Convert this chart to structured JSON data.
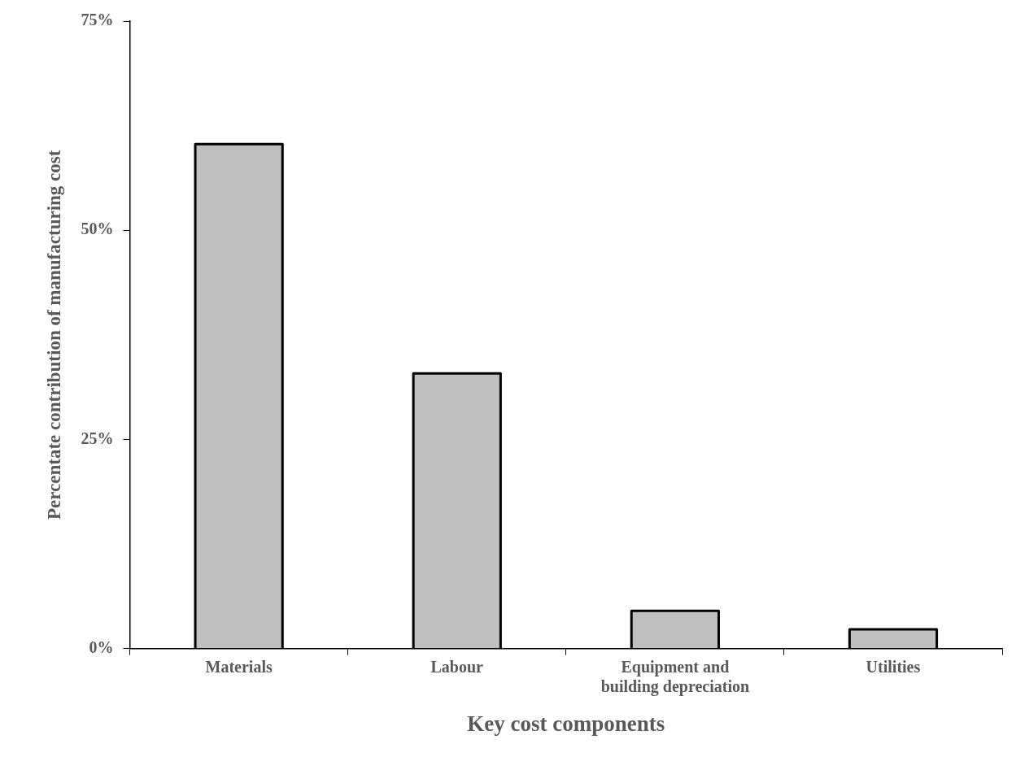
{
  "chart_data": {
    "type": "bar",
    "xlabel": "Key cost components",
    "ylabel": "Percentate contribution of manufacturing cost",
    "categories": [
      "Materials",
      "Labour",
      "Equipment and building depreciation",
      "Utilities"
    ],
    "values": [
      60.3,
      32.9,
      4.5,
      2.3
    ],
    "color": "#bfbfbf",
    "ylim": [
      0,
      75
    ],
    "yticks": [
      {
        "value": 0,
        "label": "0%"
      },
      {
        "value": 25,
        "label": "25%"
      },
      {
        "value": 50,
        "label": "50%"
      },
      {
        "value": 75,
        "label": "75%"
      }
    ],
    "grid": false,
    "legend": false
  }
}
